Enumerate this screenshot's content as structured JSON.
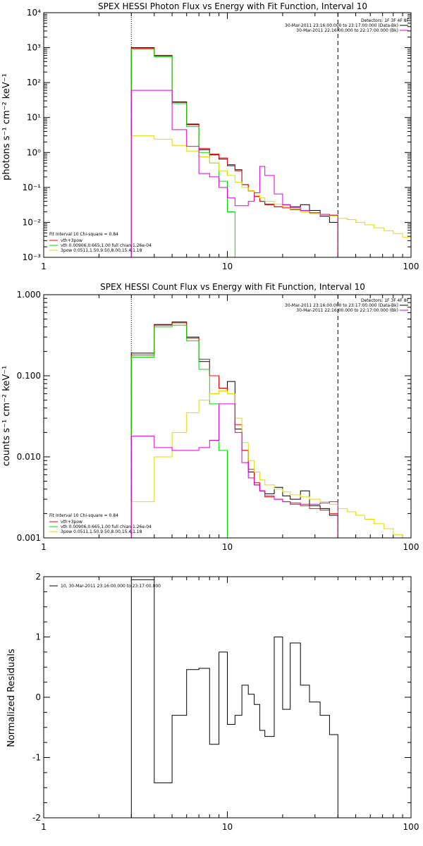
{
  "chart_data": [
    {
      "type": "line",
      "title": "SPEX HESSI Photon Flux vs Energy with Fit Function, Interval 10",
      "xlabel": "",
      "ylabel": "photons s⁻¹ cm⁻² keV⁻¹",
      "xscale": "log",
      "yscale": "log",
      "xlim": [
        1,
        100
      ],
      "ylim": [
        0.001,
        10000
      ],
      "x_tick_labels": [
        {
          "v": 1,
          "t": "1"
        },
        {
          "v": 10,
          "t": "10"
        },
        {
          "v": 100,
          "t": "100"
        }
      ],
      "y_tick_labels": [
        {
          "v": 0.001,
          "t": "10⁻³"
        },
        {
          "v": 0.01,
          "t": "10⁻²"
        },
        {
          "v": 0.1,
          "t": "10⁻¹"
        },
        {
          "v": 1,
          "t": "10⁰"
        },
        {
          "v": 10,
          "t": "10¹"
        },
        {
          "v": 100,
          "t": "10²"
        },
        {
          "v": 1000,
          "t": "10³"
        },
        {
          "v": 10000,
          "t": "10⁴"
        }
      ],
      "bin_edges": [
        3,
        4,
        5,
        6,
        7,
        8,
        9,
        10,
        11,
        12,
        13,
        14,
        15,
        16,
        18,
        20,
        22,
        25,
        28,
        32,
        36,
        40,
        45,
        50,
        56,
        63,
        71,
        80,
        90,
        100
      ],
      "vlines": [
        {
          "x": 3,
          "style": "dotted"
        },
        {
          "x": 40,
          "style": "dashed"
        }
      ],
      "series": [
        {
          "name": "",
          "color": "#000000",
          "x_range": [
            3,
            40
          ],
          "values": [
            1000,
            600,
            28,
            6.5,
            1.2,
            0.85,
            0.65,
            0.42,
            0.32,
            0.12,
            0.08,
            0.055,
            0.04,
            0.033,
            0.028,
            0.032,
            0.028,
            0.032,
            0.022,
            0.015,
            0.01
          ]
        },
        {
          "name": "vth+3pow",
          "color": "#ff0000",
          "x_range": [
            3,
            40
          ],
          "values": [
            950,
            580,
            27,
            6.2,
            1.3,
            0.9,
            0.7,
            0.45,
            0.3,
            0.12,
            0.08,
            0.055,
            0.04,
            0.032,
            0.028,
            0.026,
            0.023,
            0.02,
            0.018,
            0.017,
            0.016
          ]
        },
        {
          "name": "vth 0.00906,0.665,1.00 full chian 1.26e-04",
          "color": "#00dd00",
          "x_range": [
            3,
            11
          ],
          "values": [
            900,
            550,
            25,
            5.5,
            1.0,
            0.5,
            0.15,
            0.02
          ]
        },
        {
          "name": "3pow 0.0511,1.50,9.50,8.00,15.4,1.18",
          "color": "#dddd00",
          "x_range": [
            3,
            100
          ],
          "values": [
            3,
            2.4,
            1.6,
            1.1,
            0.75,
            0.5,
            0.3,
            0.22,
            0.14,
            0.1,
            0.08,
            0.06,
            0.05,
            0.04,
            0.033,
            0.028,
            0.024,
            0.02,
            0.018,
            0.016,
            0.015,
            0.013,
            0.012,
            0.01,
            0.0085,
            0.007,
            0.0058,
            0.0048,
            0.0038
          ]
        },
        {
          "name": "",
          "color": "#dd00dd",
          "x_range": [
            3,
            40
          ],
          "values": [
            60,
            60,
            4.5,
            1.5,
            0.25,
            0.2,
            0.1,
            0.05,
            0.03,
            0.03,
            0.04,
            0.07,
            0.4,
            0.22,
            0.065,
            0.032,
            0.026,
            0.022,
            0.019,
            0.017,
            0.016,
            0.015
          ]
        }
      ],
      "fit_label": "Fit Interval 10    Chi-square = 0.84",
      "legend_entries": [
        {
          "text": "vth+3pow",
          "color": "#ff0000"
        },
        {
          "text": "vth 0.00906,0.665,1.00 full chian 1.26e-04",
          "color": "#00dd00"
        },
        {
          "text": "3pow 0.0511,1.50,9.50,8.00,15.4,1.18",
          "color": "#dddd00"
        }
      ],
      "legend_placement": "bottom-left",
      "detectors_label": "Detectors: 1F 3F 4F 8F",
      "time_entries": [
        {
          "text": "30-Mar-2011 23:16:00.000 to 23:17:00.000 (Data-Bk)",
          "color": "#000000"
        },
        {
          "text": "30-Mar-2011 22:16:00.000 to 22:17:00.000 (Bk)",
          "color": "#dd00dd"
        }
      ]
    },
    {
      "type": "line",
      "title": "SPEX HESSI Count Flux vs Energy with Fit Function, Interval 10",
      "xlabel": "",
      "ylabel": "counts s⁻¹ cm⁻² keV⁻¹",
      "xscale": "log",
      "yscale": "log",
      "xlim": [
        1,
        100
      ],
      "ylim": [
        0.001,
        1
      ],
      "x_tick_labels": [
        {
          "v": 1,
          "t": "1"
        },
        {
          "v": 10,
          "t": "10"
        },
        {
          "v": 100,
          "t": "100"
        }
      ],
      "y_tick_labels": [
        {
          "v": 0.001,
          "t": "0.001"
        },
        {
          "v": 0.01,
          "t": "0.010"
        },
        {
          "v": 0.1,
          "t": "0.100"
        },
        {
          "v": 1,
          "t": "1.000"
        }
      ],
      "bin_edges": [
        3,
        4,
        5,
        6,
        7,
        8,
        9,
        10,
        11,
        12,
        13,
        14,
        15,
        16,
        18,
        20,
        22,
        25,
        28,
        32,
        36,
        40,
        45,
        50,
        56,
        63,
        71,
        80,
        90,
        100
      ],
      "vlines": [
        {
          "x": 3,
          "style": "dotted"
        },
        {
          "x": 40,
          "style": "dashed"
        }
      ],
      "series": [
        {
          "name": "",
          "color": "#000000",
          "x_range": [
            3,
            40
          ],
          "values": [
            0.19,
            0.43,
            0.46,
            0.3,
            0.15,
            0.1,
            0.07,
            0.085,
            0.022,
            0.012,
            0.0065,
            0.0045,
            0.0038,
            0.0035,
            0.0042,
            0.0033,
            0.003,
            0.0038,
            0.0025,
            0.0023,
            0.0019
          ]
        },
        {
          "name": "vth+3pow",
          "color": "#ff0000",
          "x_range": [
            3,
            40
          ],
          "values": [
            0.18,
            0.42,
            0.45,
            0.29,
            0.16,
            0.1,
            0.07,
            0.06,
            0.025,
            0.012,
            0.007,
            0.0048,
            0.0038,
            0.0032,
            0.003,
            0.0028,
            0.0026,
            0.0025,
            0.0023,
            0.0022,
            0.002
          ]
        },
        {
          "name": "vth 0.00906,0.665,1.00 full chian 1.26e-04",
          "color": "#00dd00",
          "x_range": [
            3,
            11
          ],
          "values": [
            0.17,
            0.4,
            0.42,
            0.27,
            0.12,
            0.045,
            0.012,
            0.001
          ]
        },
        {
          "name": "3pow 0.0511,1.50,9.50,8.00,15.4,1.18",
          "color": "#dddd00",
          "x_range": [
            3,
            100
          ],
          "values": [
            0.0028,
            0.01,
            0.02,
            0.035,
            0.05,
            0.06,
            0.065,
            0.06,
            0.03,
            0.015,
            0.009,
            0.0065,
            0.0052,
            0.0045,
            0.004,
            0.0037,
            0.0034,
            0.0032,
            0.003,
            0.0028,
            0.0026,
            0.0023,
            0.0021,
            0.0019,
            0.0017,
            0.0015,
            0.0013,
            0.0011,
            0.001
          ]
        },
        {
          "name": "",
          "color": "#dd00dd",
          "x_range": [
            3,
            40
          ],
          "values": [
            0.018,
            0.013,
            0.012,
            0.012,
            0.013,
            0.016,
            0.045,
            0.045,
            0.02,
            0.0085,
            0.0055,
            0.0045,
            0.0038,
            0.0033,
            0.003,
            0.0028,
            0.0027,
            0.0026,
            0.0026,
            0.0027,
            0.0028
          ]
        }
      ],
      "fit_label": "Fit Interval 10    Chi-square = 0.84",
      "legend_entries": [
        {
          "text": "vth+3pow",
          "color": "#ff0000"
        },
        {
          "text": "vth 0.00906,0.665,1.00 full chian 1.26e-04",
          "color": "#00dd00"
        },
        {
          "text": "3pow 0.0511,1.50,9.50,8.00,15.4,1.18",
          "color": "#dddd00"
        }
      ],
      "legend_placement": "bottom-left",
      "detectors_label": "Detectors: 1F 3F 4F 8F",
      "time_entries": [
        {
          "text": "30-Mar-2011 23:16:00.000 to 23:17:00.000 (Data-Bk)",
          "color": "#000000"
        },
        {
          "text": "30-Mar-2011 22:16:00.000 to 22:17:00.000 (Bk)",
          "color": "#dd00dd"
        }
      ]
    },
    {
      "type": "line",
      "title": "",
      "xlabel": "",
      "ylabel": "Normalized Residuals",
      "xscale": "log",
      "yscale": "linear",
      "xlim": [
        1,
        100
      ],
      "ylim": [
        -2,
        2
      ],
      "x_tick_labels": [
        {
          "v": 1,
          "t": "1"
        },
        {
          "v": 10,
          "t": "10"
        },
        {
          "v": 100,
          "t": "100"
        }
      ],
      "y_tick_labels": [
        {
          "v": -2,
          "t": "-2"
        },
        {
          "v": -1,
          "t": "-1"
        },
        {
          "v": 0,
          "t": "0"
        },
        {
          "v": 1,
          "t": "1"
        },
        {
          "v": 2,
          "t": "2"
        }
      ],
      "bin_edges": [
        3,
        4,
        5,
        6,
        7,
        8,
        9,
        10,
        11,
        12,
        13,
        14,
        15,
        16,
        18,
        20,
        22,
        25,
        28,
        32,
        36,
        40
      ],
      "vlines": [],
      "series": [
        {
          "name": "10, 30-Mar-2011 23:16:00.000 to 23:17:00.000",
          "color": "#000000",
          "x_range": [
            3,
            40
          ],
          "values": [
            1.95,
            -1.42,
            -0.3,
            0.46,
            0.48,
            -0.78,
            0.75,
            -0.45,
            -0.3,
            0.2,
            0.05,
            -0.12,
            -0.55,
            -0.65,
            1.0,
            -0.2,
            0.9,
            0.2,
            -0.08,
            -0.3,
            -0.62
          ]
        }
      ],
      "legend_entries": [
        {
          "text": "10, 30-Mar-2011 23:16:00.000 to 23:17:00.000",
          "color": "#000000"
        }
      ],
      "legend_placement": "top-left"
    }
  ]
}
